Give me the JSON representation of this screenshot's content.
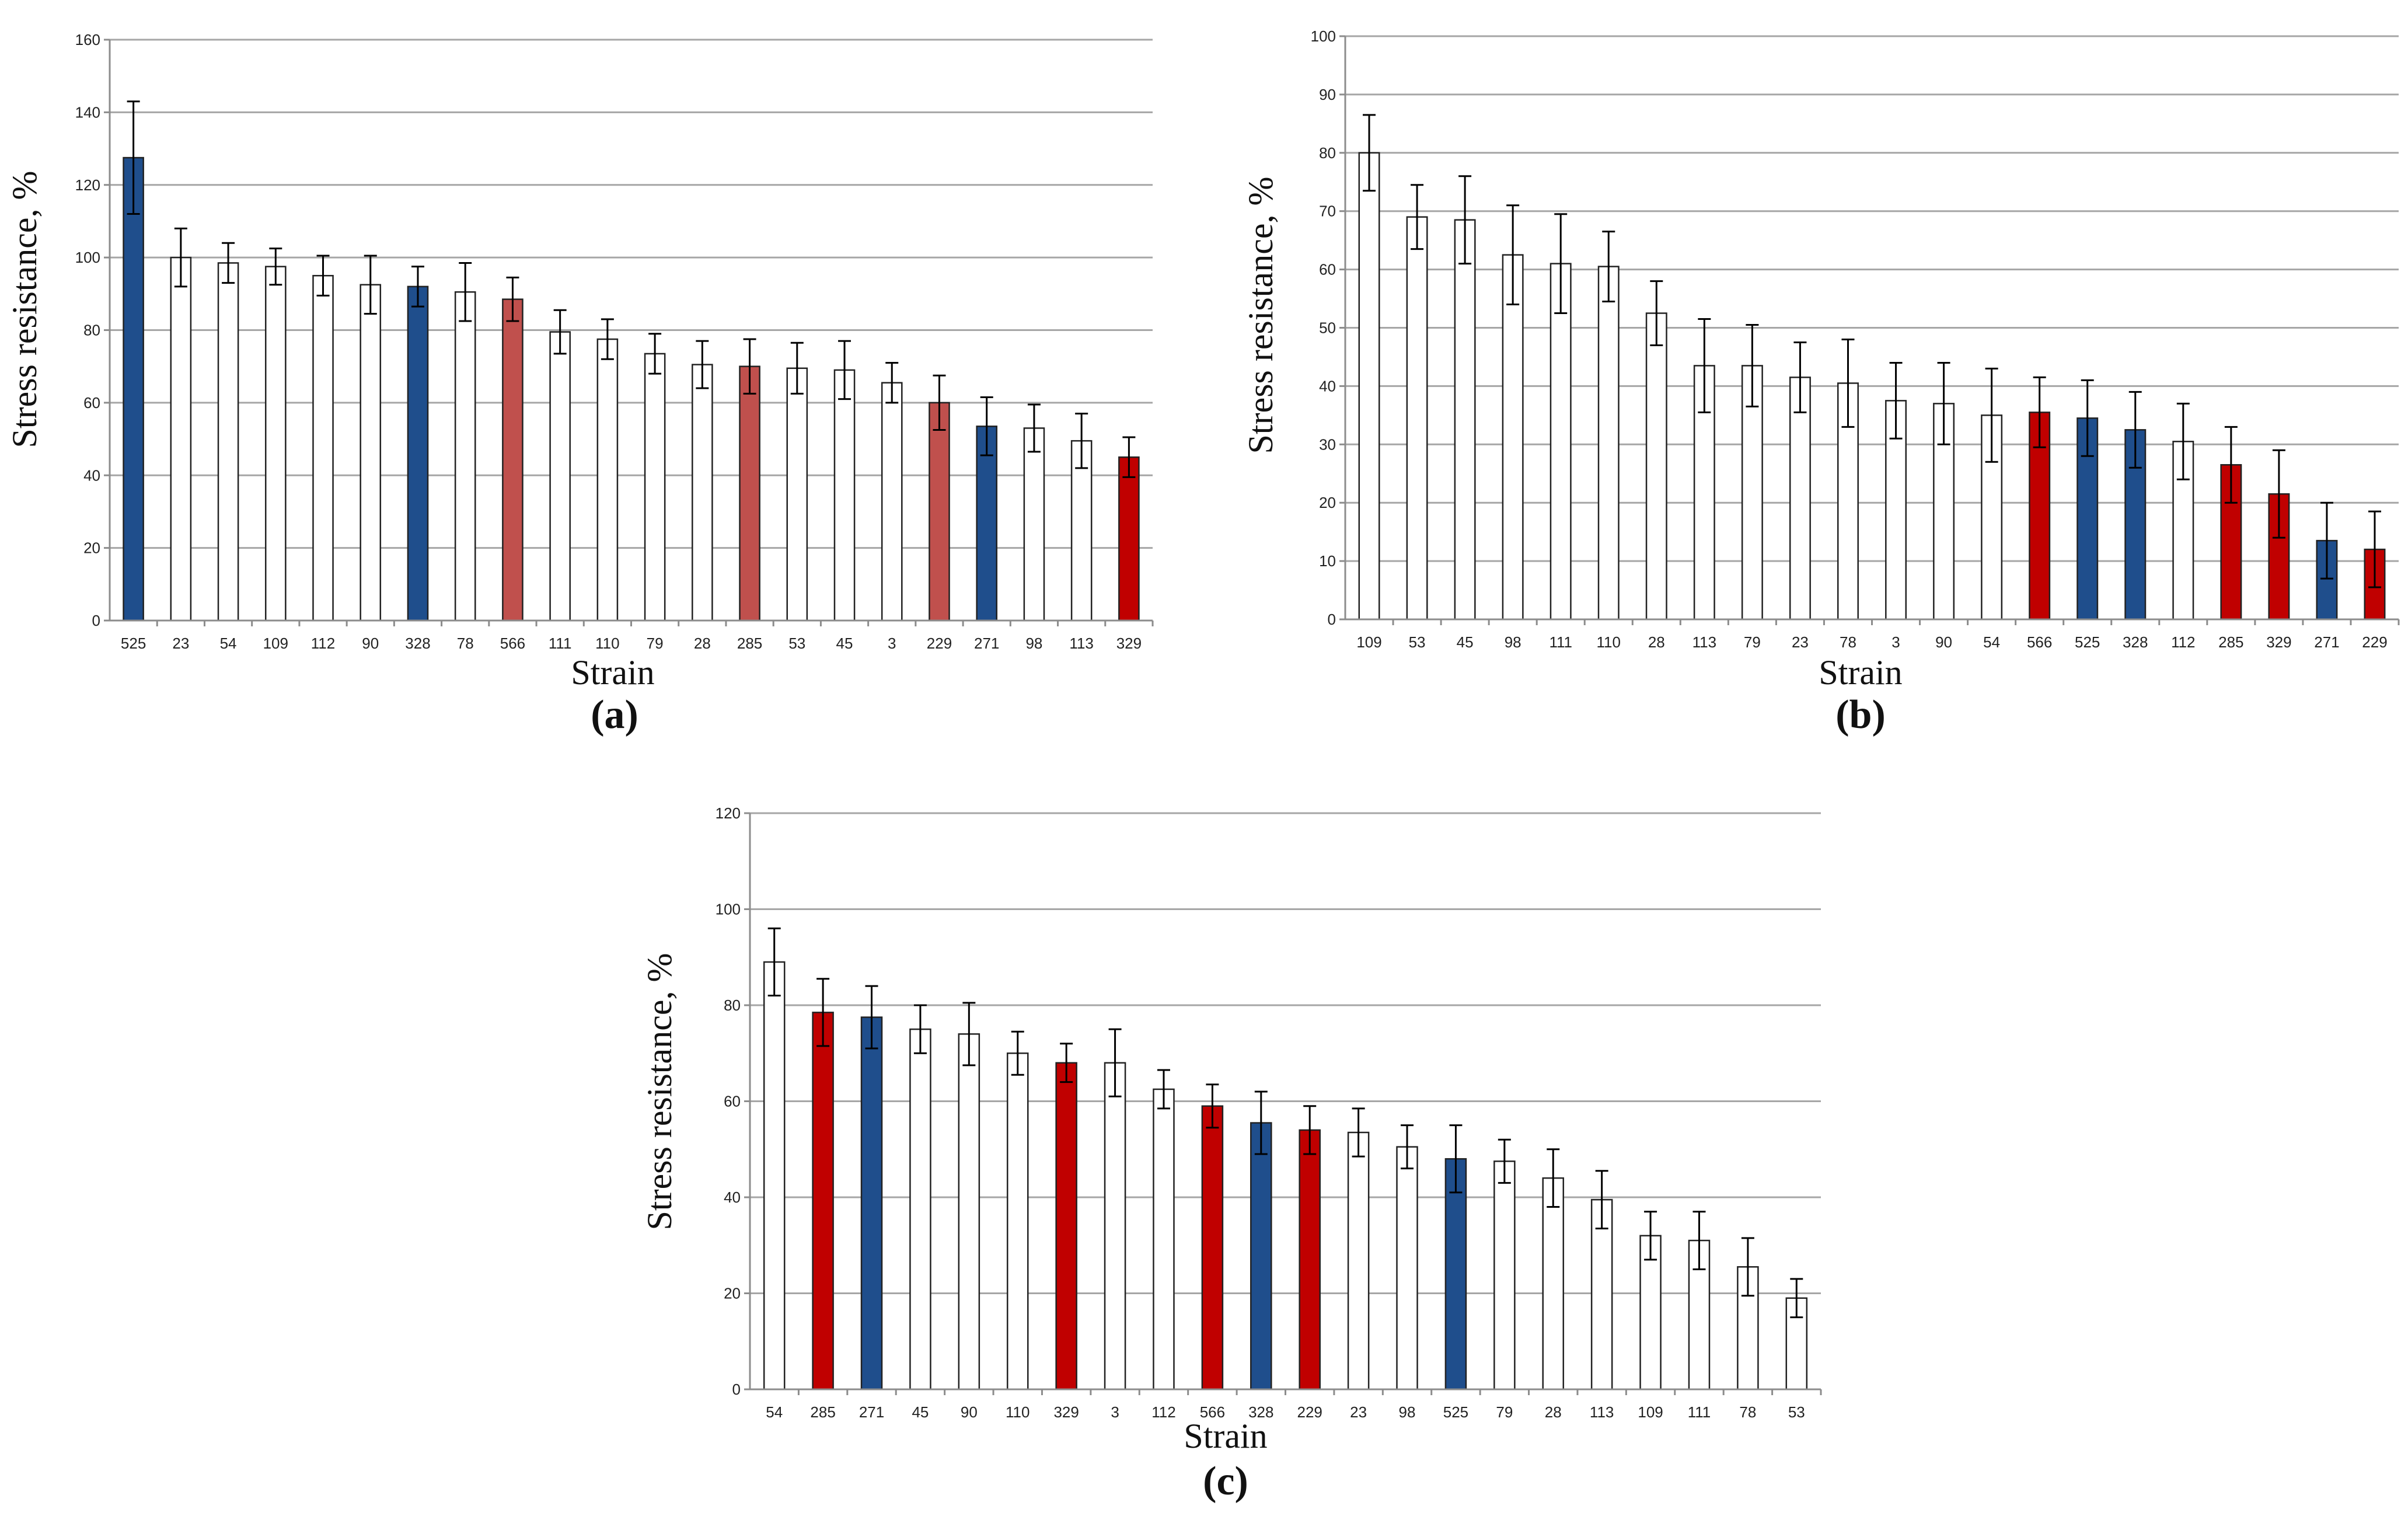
{
  "colors": {
    "blue": "#1f4e8c",
    "red": "#c00000",
    "light_red": "#c0504d",
    "white": "#ffffff",
    "grid": "#a6a6a6",
    "axis": "#8c8c8c",
    "bar_edge": "#222222"
  },
  "chart_data": [
    {
      "type": "bar",
      "panel": "(a)",
      "xlabel": "Strain",
      "ylabel": "Stress resistance, %",
      "ylim": [
        0,
        160
      ],
      "yticks": [
        "0",
        "20",
        "40",
        "60",
        "80",
        "100",
        "120",
        "140",
        "160"
      ],
      "grid": true,
      "categories": [
        "525",
        "23",
        "54",
        "109",
        "112",
        "90",
        "328",
        "78",
        "566",
        "111",
        "110",
        "79",
        "28",
        "285",
        "53",
        "45",
        "3",
        "229",
        "271",
        "98",
        "113",
        "329"
      ],
      "values": [
        127.5,
        100,
        98.5,
        97.5,
        95,
        92.5,
        92,
        90.5,
        88.5,
        79.5,
        77.5,
        73.5,
        70.5,
        70,
        69.5,
        69,
        65.5,
        60,
        53.5,
        53,
        49.5,
        45
      ],
      "errors": [
        15.5,
        8,
        5.5,
        5,
        5.5,
        8,
        5.5,
        8,
        6,
        6,
        5.5,
        5.5,
        6.5,
        7.5,
        7,
        8,
        5.5,
        7.5,
        8,
        6.5,
        7.5,
        5.5
      ],
      "fills": [
        "blue",
        "white",
        "white",
        "white",
        "white",
        "white",
        "blue",
        "white",
        "light_red",
        "white",
        "white",
        "white",
        "white",
        "light_red",
        "white",
        "white",
        "white",
        "light_red",
        "blue",
        "white",
        "white",
        "red"
      ]
    },
    {
      "type": "bar",
      "panel": "(b)",
      "xlabel": "Strain",
      "ylabel": "Stress resistance, %",
      "ylim": [
        0,
        100
      ],
      "yticks": [
        "0",
        "10",
        "20",
        "30",
        "40",
        "50",
        "60",
        "70",
        "80",
        "90",
        "100"
      ],
      "grid": true,
      "categories": [
        "109",
        "53",
        "45",
        "98",
        "111",
        "110",
        "28",
        "113",
        "79",
        "23",
        "78",
        "3",
        "90",
        "54",
        "566",
        "525",
        "328",
        "112",
        "285",
        "329",
        "271",
        "229"
      ],
      "values": [
        80,
        69,
        68.5,
        62.5,
        61,
        60.5,
        52.5,
        43.5,
        43.5,
        41.5,
        40.5,
        37.5,
        37,
        35,
        35.5,
        34.5,
        32.5,
        30.5,
        26.5,
        21.5,
        13.5,
        12
      ],
      "errors": [
        6.5,
        5.5,
        7.5,
        8.5,
        8.5,
        6,
        5.5,
        8,
        7,
        6,
        7.5,
        6.5,
        7,
        8,
        6,
        6.5,
        6.5,
        6.5,
        6.5,
        7.5,
        6.5,
        6.5
      ],
      "fills": [
        "white",
        "white",
        "white",
        "white",
        "white",
        "white",
        "white",
        "white",
        "white",
        "white",
        "white",
        "white",
        "white",
        "white",
        "red",
        "blue",
        "blue",
        "white",
        "red",
        "red",
        "blue",
        "red"
      ]
    },
    {
      "type": "bar",
      "panel": "(c)",
      "xlabel": "Strain",
      "ylabel": "Stress resistance, %",
      "ylim": [
        0,
        120
      ],
      "yticks": [
        "0",
        "20",
        "40",
        "60",
        "80",
        "100",
        "120"
      ],
      "grid": true,
      "categories": [
        "54",
        "285",
        "271",
        "45",
        "90",
        "110",
        "329",
        "3",
        "112",
        "566",
        "328",
        "229",
        "23",
        "98",
        "525",
        "79",
        "28",
        "113",
        "109",
        "111",
        "78",
        "53"
      ],
      "values": [
        89,
        78.5,
        77.5,
        75,
        74,
        70,
        68,
        68,
        62.5,
        59,
        55.5,
        54,
        53.5,
        50.5,
        48,
        47.5,
        44,
        39.5,
        32,
        31,
        25.5,
        19
      ],
      "errors": [
        7,
        7,
        6.5,
        5,
        6.5,
        4.5,
        4,
        7,
        4,
        4.5,
        6.5,
        5,
        5,
        4.5,
        7,
        4.5,
        6,
        6,
        5,
        6,
        6,
        4
      ],
      "fills": [
        "white",
        "red",
        "blue",
        "white",
        "white",
        "white",
        "red",
        "white",
        "white",
        "red",
        "blue",
        "red",
        "white",
        "white",
        "blue",
        "white",
        "white",
        "white",
        "white",
        "white",
        "white",
        "white"
      ]
    }
  ]
}
